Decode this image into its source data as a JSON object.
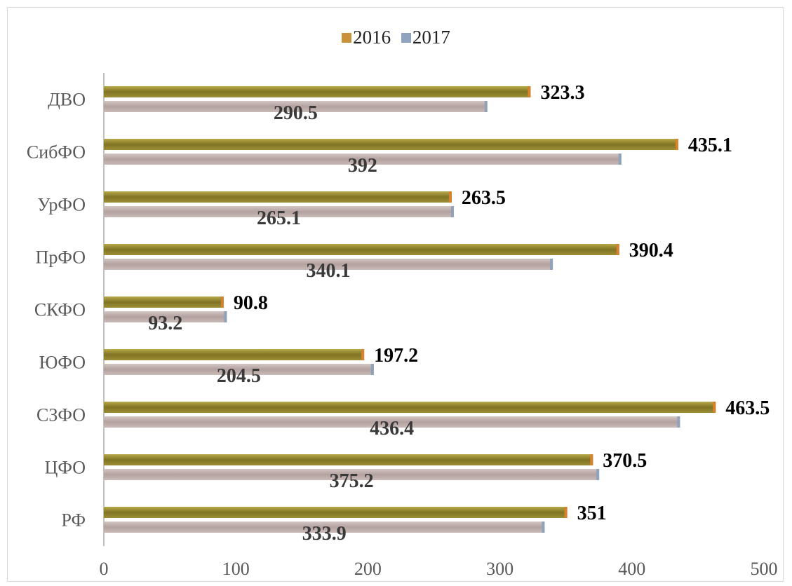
{
  "chart_data": {
    "type": "bar",
    "orientation": "horizontal",
    "categories": [
      "РФ",
      "ЦФО",
      "СЗФО",
      "ЮФО",
      "СКФО",
      "ПрФО",
      "УрФО",
      "СибФО",
      "ДВО"
    ],
    "series": [
      {
        "name": "2016",
        "values": [
          351,
          370.5,
          463.5,
          197.2,
          90.8,
          390.4,
          263.5,
          435.1,
          323.3
        ],
        "labels": [
          "351",
          "370.5",
          "463.5",
          "197.2",
          "90.8",
          "390.4",
          "263.5",
          "435.1",
          "323.3"
        ],
        "color": "#8a7d2c"
      },
      {
        "name": "2017",
        "values": [
          333.9,
          375.2,
          436.4,
          204.5,
          93.2,
          340.1,
          265.1,
          392,
          290.5
        ],
        "labels": [
          "333.9",
          "375.2",
          "436.4",
          "204.5",
          "93.2",
          "340.1",
          "265.1",
          "392",
          "290.5"
        ],
        "color": "#b9a7a4"
      }
    ],
    "xlim": [
      0,
      500
    ],
    "xticks": [
      "0",
      "100",
      "200",
      "300",
      "400",
      "500"
    ],
    "legend_position": "top",
    "grid": false
  },
  "legend": {
    "colors": [
      "#c9913a",
      "#8fa3bd"
    ]
  }
}
